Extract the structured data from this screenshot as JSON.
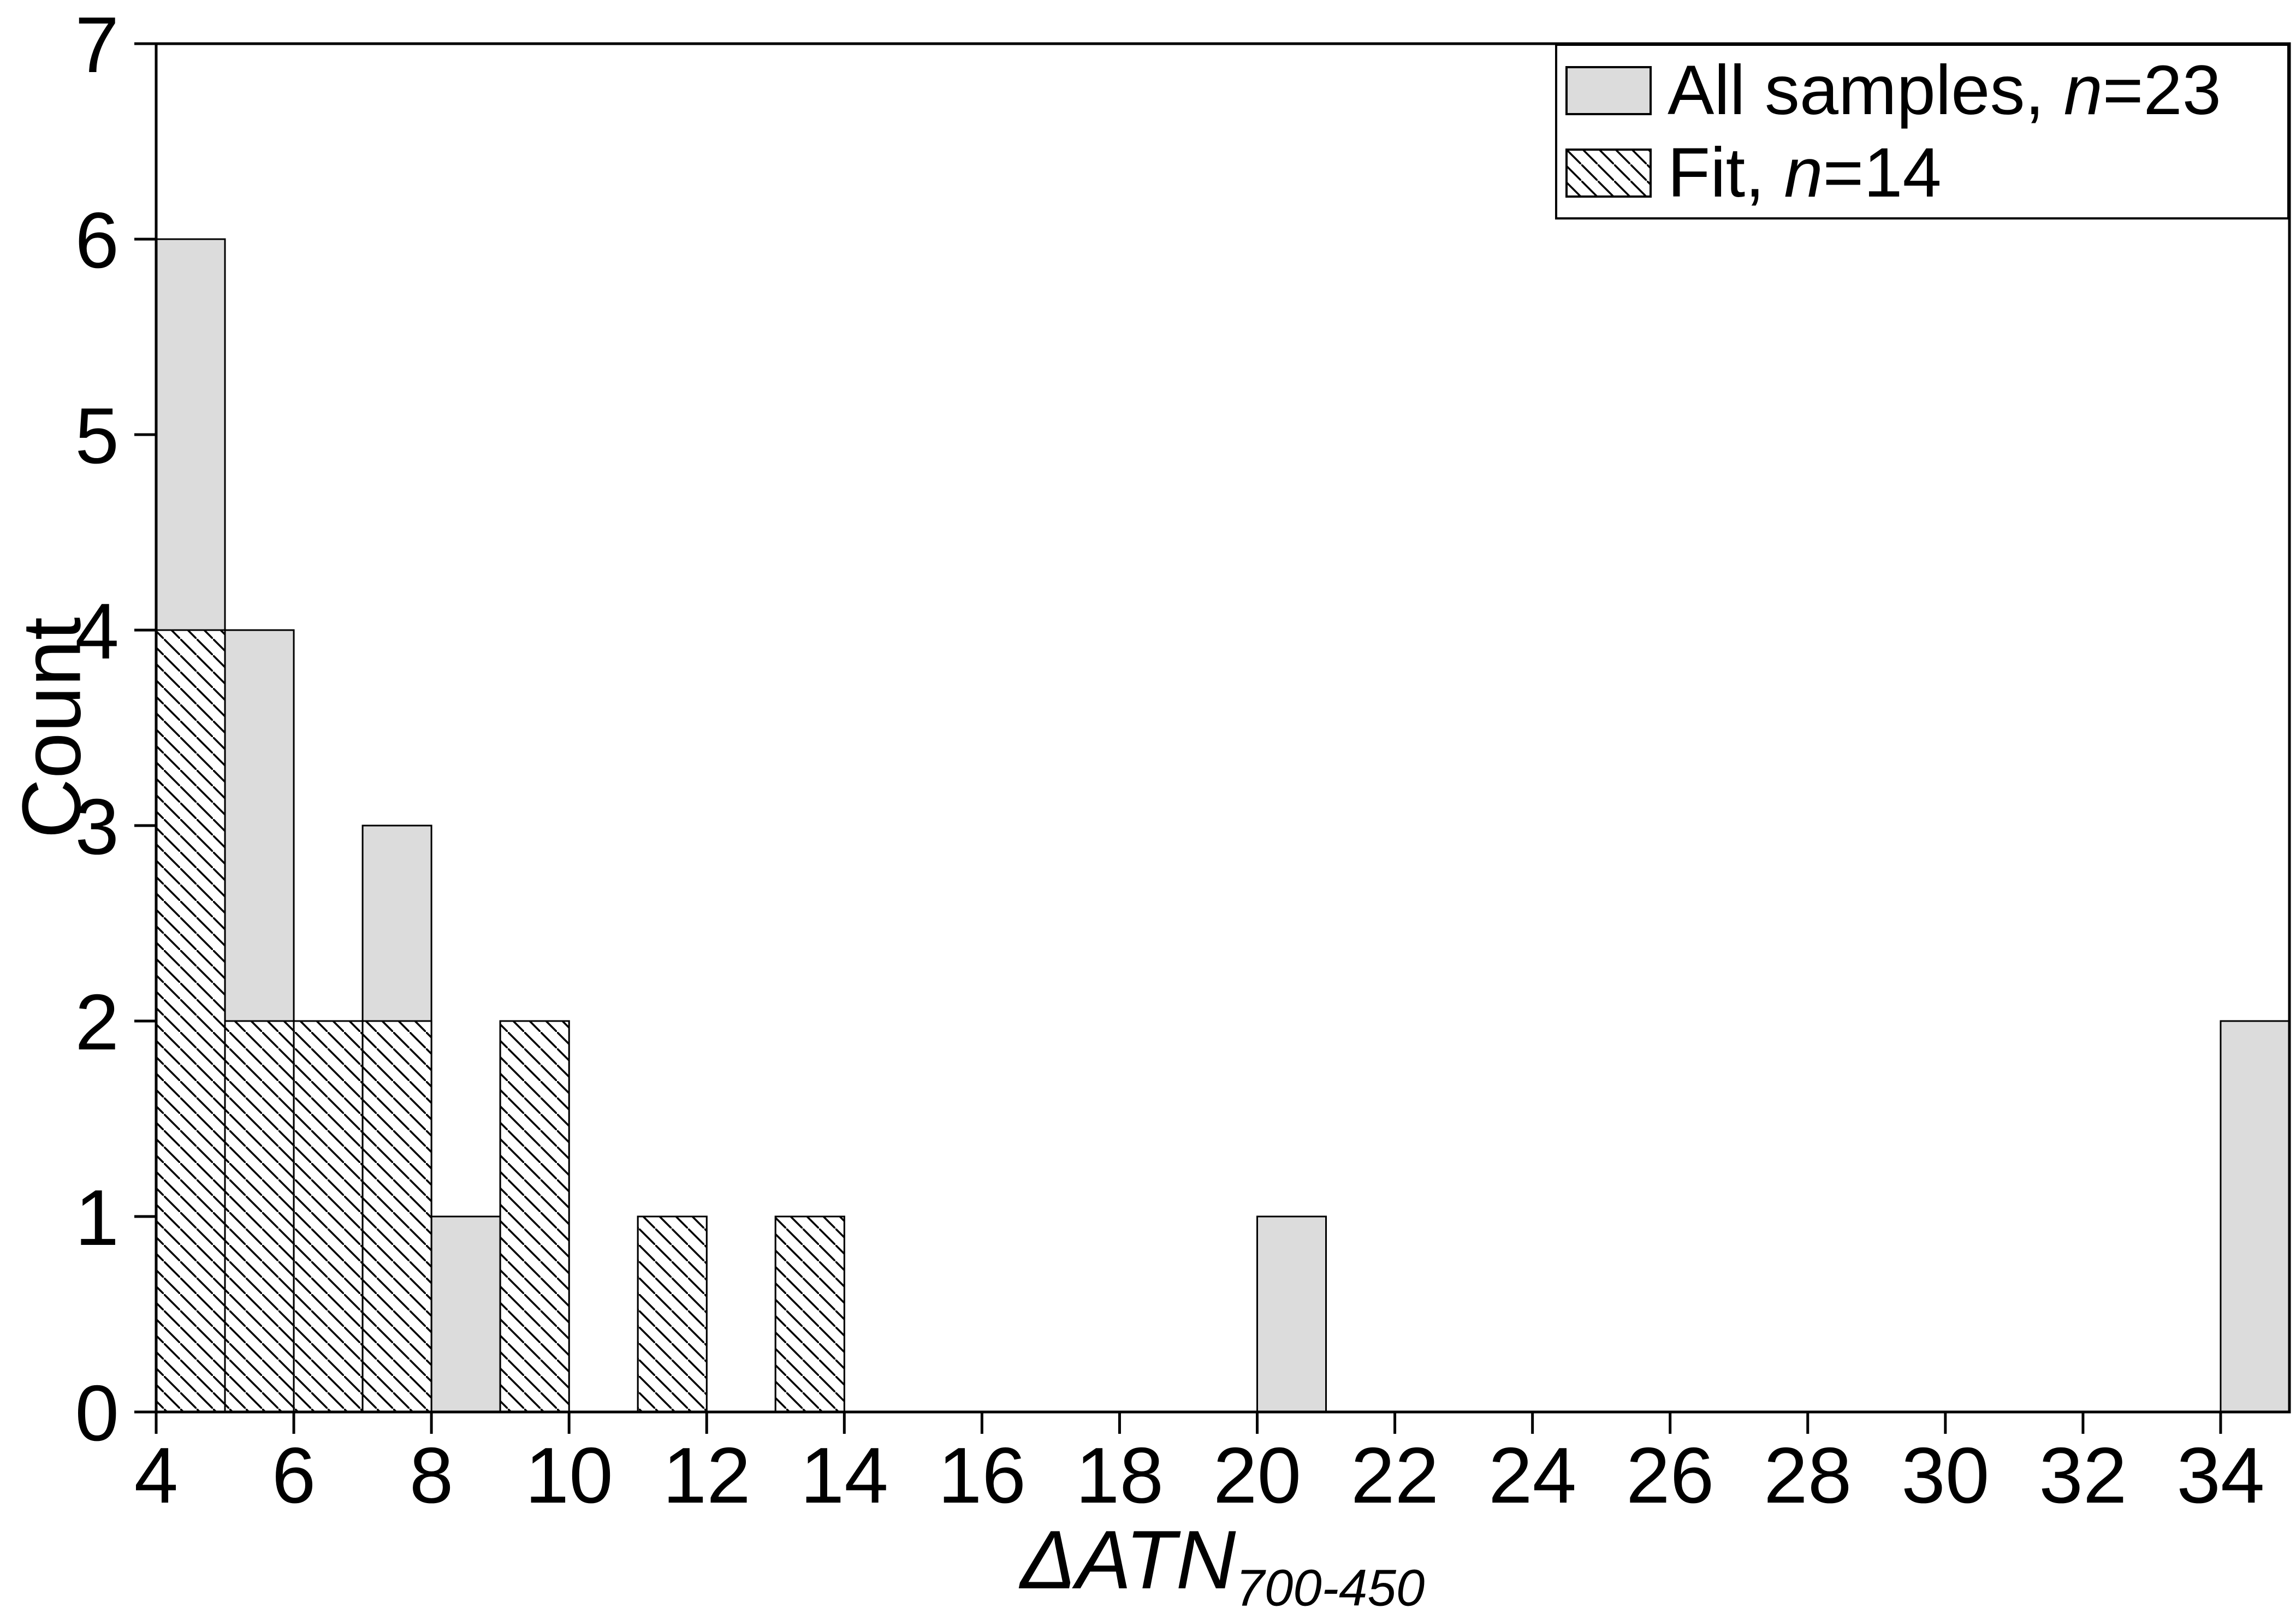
{
  "chart_data": {
    "type": "bar",
    "subtype": "histogram",
    "title": "",
    "ylabel": "Count",
    "xlabel_main": "ΔATN",
    "xlabel_sub": "700-450",
    "xlim": [
      4,
      35
    ],
    "ylim": [
      0,
      7
    ],
    "bin_width": 1,
    "x_ticks": [
      4,
      6,
      8,
      10,
      12,
      14,
      16,
      18,
      20,
      22,
      24,
      26,
      28,
      30,
      32,
      34
    ],
    "y_ticks": [
      0,
      1,
      2,
      3,
      4,
      5,
      6,
      7
    ],
    "grid": false,
    "series": [
      {
        "name": "All samples",
        "n": 23,
        "style": "fill",
        "bins": [
          {
            "x": 4,
            "count": 6
          },
          {
            "x": 5,
            "count": 4
          },
          {
            "x": 6,
            "count": 2
          },
          {
            "x": 7,
            "count": 3
          },
          {
            "x": 8,
            "count": 1
          },
          {
            "x": 9,
            "count": 2
          },
          {
            "x": 11,
            "count": 1
          },
          {
            "x": 13,
            "count": 1
          },
          {
            "x": 20,
            "count": 1
          },
          {
            "x": 34,
            "count": 2
          }
        ]
      },
      {
        "name": "Fit",
        "n": 14,
        "style": "hatch",
        "bins": [
          {
            "x": 4,
            "count": 4
          },
          {
            "x": 5,
            "count": 2
          },
          {
            "x": 6,
            "count": 2
          },
          {
            "x": 7,
            "count": 2
          },
          {
            "x": 9,
            "count": 2
          },
          {
            "x": 11,
            "count": 1
          },
          {
            "x": 13,
            "count": 1
          }
        ]
      }
    ],
    "legend": {
      "position": "top-right",
      "items": [
        {
          "label": "All samples, n=23",
          "prefix": "All samples, ",
          "n_char": "n",
          "suffix": "=23",
          "swatch": "fill"
        },
        {
          "label": "Fit, n=14",
          "prefix": "Fit, ",
          "n_char": "n",
          "suffix": "=14",
          "swatch": "hatch"
        }
      ]
    },
    "colors": {
      "bar_fill": "#dcdcdc",
      "stroke": "#000000",
      "hatch_line": "#000000",
      "background": "#ffffff"
    }
  }
}
